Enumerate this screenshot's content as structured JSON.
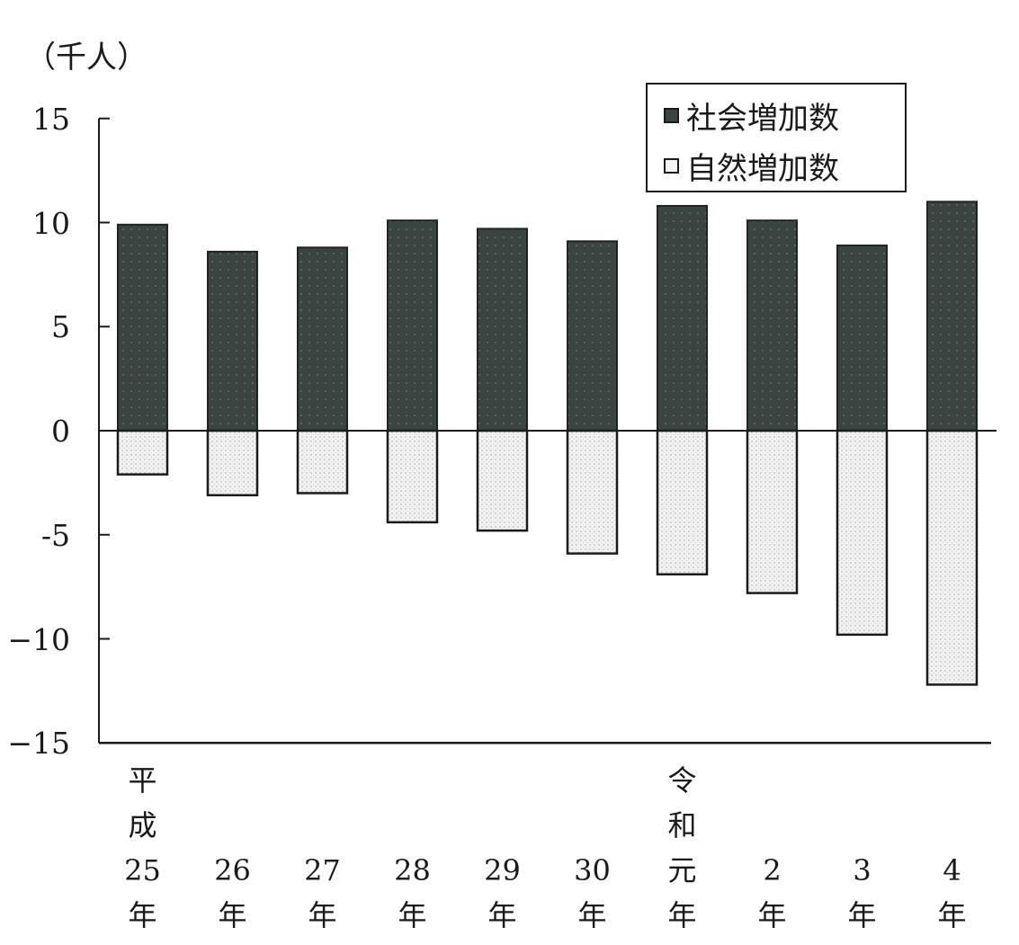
{
  "chart_data": {
    "type": "bar",
    "title": "",
    "unit_label": "（千人）",
    "xlabel": "",
    "ylabel": "（千人）",
    "ylim": [
      -15,
      15
    ],
    "yticks": [
      15,
      10,
      5,
      0,
      -5,
      -10,
      -15
    ],
    "ytick_labels": [
      "15",
      "10",
      "5",
      "0",
      "-5",
      "−10",
      "−15"
    ],
    "grid": false,
    "legend_position": "top-right",
    "stacked": "diverging",
    "categories": [
      "平成25年",
      "26年",
      "27年",
      "28年",
      "29年",
      "30年",
      "令和元年",
      "2年",
      "3年",
      "4年"
    ],
    "category_labels": [
      [
        "平",
        "成",
        "25",
        "年"
      ],
      [
        "26",
        "年"
      ],
      [
        "27",
        "年"
      ],
      [
        "28",
        "年"
      ],
      [
        "29",
        "年"
      ],
      [
        "30",
        "年"
      ],
      [
        "令",
        "和",
        "元",
        "年"
      ],
      [
        "2",
        "年"
      ],
      [
        "3",
        "年"
      ],
      [
        "4",
        "年"
      ]
    ],
    "series": [
      {
        "name": "社会増加数",
        "color": "#3a4440",
        "values": [
          9.9,
          8.6,
          8.8,
          10.1,
          9.7,
          9.1,
          10.8,
          10.1,
          8.9,
          11.0
        ]
      },
      {
        "name": "自然増加数",
        "color": "#ececec",
        "values": [
          -2.1,
          -3.1,
          -3.0,
          -4.4,
          -4.8,
          -5.9,
          -6.9,
          -7.8,
          -9.8,
          -12.2
        ]
      }
    ]
  },
  "legend": {
    "items": [
      {
        "label": "社会増加数",
        "marker": "■"
      },
      {
        "label": "自然増加数",
        "marker": "□"
      }
    ]
  }
}
